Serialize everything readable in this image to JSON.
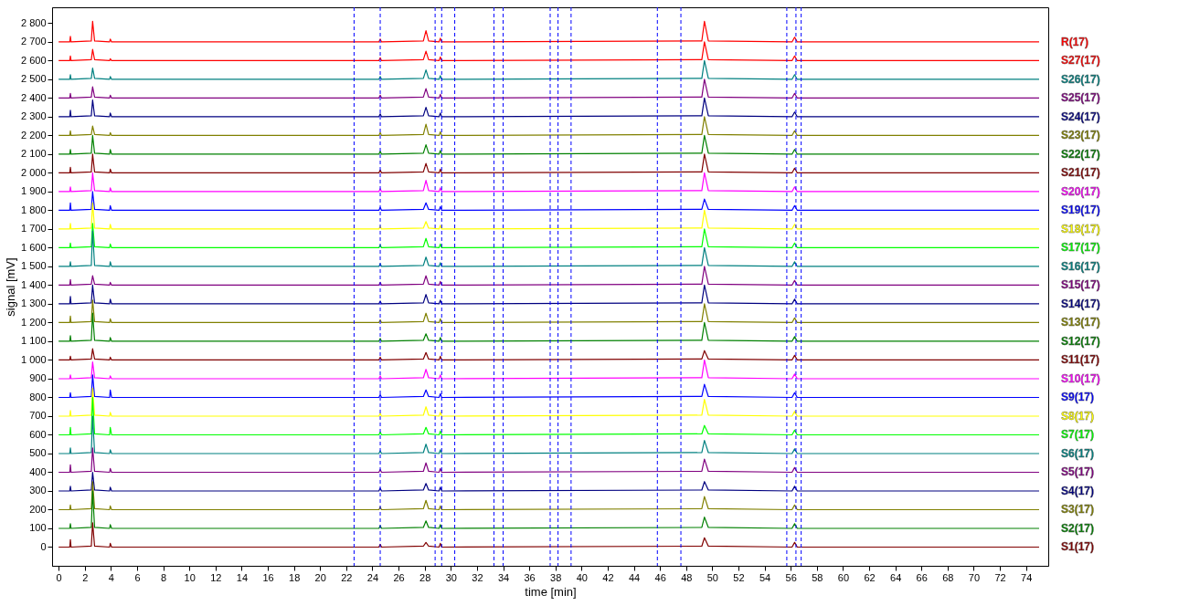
{
  "chart_data": {
    "type": "line",
    "xlabel": "time [min]",
    "ylabel": "signal [mV]",
    "line_style": "solid",
    "grid": false,
    "xlim": [
      -0.5,
      75.7
    ],
    "xticks": [
      0,
      2,
      4,
      6,
      8,
      10,
      12,
      14,
      16,
      18,
      20,
      22,
      24,
      26,
      28,
      30,
      32,
      34,
      36,
      38,
      40,
      42,
      44,
      46,
      48,
      50,
      52,
      54,
      56,
      58,
      60,
      62,
      64,
      66,
      68,
      70,
      72,
      74
    ],
    "ylim": [
      -100,
      2885
    ],
    "yticks": [
      0,
      100,
      200,
      300,
      400,
      500,
      600,
      700,
      800,
      900,
      {
        "value": 1000,
        "label": "1 000"
      },
      {
        "value": 1100,
        "label": "1 100"
      },
      {
        "value": 1200,
        "label": "1 200"
      },
      {
        "value": 1300,
        "label": "1 300"
      },
      {
        "value": 1400,
        "label": "1 400"
      },
      {
        "value": 1500,
        "label": "1 500"
      },
      {
        "value": 1600,
        "label": "1 600"
      },
      {
        "value": 1700,
        "label": "1 700"
      },
      {
        "value": 1800,
        "label": "1 800"
      },
      {
        "value": 1900,
        "label": "1 900"
      },
      {
        "value": 2000,
        "label": "2 000"
      },
      {
        "value": 2100,
        "label": "2 100"
      },
      {
        "value": 2200,
        "label": "2 200"
      },
      {
        "value": 2300,
        "label": "2 300"
      },
      {
        "value": 2400,
        "label": "2 400"
      },
      {
        "value": 2500,
        "label": "2 500"
      },
      {
        "value": 2600,
        "label": "2 600"
      },
      {
        "value": 2700,
        "label": "2 700"
      },
      {
        "value": 2800,
        "label": "2 800"
      }
    ],
    "x": [
      0,
      0.85,
      0.9,
      0.95,
      2.5,
      2.6,
      2.75,
      3.9,
      3.95,
      4.05,
      24.5,
      24.6,
      24.7,
      27.9,
      28.1,
      28.3,
      29.1,
      29.2,
      29.3,
      49.2,
      49.4,
      49.7,
      56.1,
      56.3,
      56.5,
      75
    ],
    "ref_lines": [
      {
        "axis": "x",
        "value": 22.6,
        "color": "#0000ff",
        "line_style": "dashed"
      },
      {
        "axis": "x",
        "value": 24.6,
        "color": "#0000ff",
        "line_style": "dashed"
      },
      {
        "axis": "x",
        "value": 28.8,
        "color": "#0000ff",
        "line_style": "dashed"
      },
      {
        "axis": "x",
        "value": 29.3,
        "color": "#0000ff",
        "line_style": "dashed"
      },
      {
        "axis": "x",
        "value": 30.3,
        "color": "#0000ff",
        "line_style": "dashed"
      },
      {
        "axis": "x",
        "value": 33.3,
        "color": "#0000ff",
        "line_style": "dashed"
      },
      {
        "axis": "x",
        "value": 34.0,
        "color": "#0000ff",
        "line_style": "dashed"
      },
      {
        "axis": "x",
        "value": 37.6,
        "color": "#0000ff",
        "line_style": "dashed"
      },
      {
        "axis": "x",
        "value": 38.2,
        "color": "#0000ff",
        "line_style": "dashed"
      },
      {
        "axis": "x",
        "value": 39.2,
        "color": "#0000ff",
        "line_style": "dashed"
      },
      {
        "axis": "x",
        "value": 45.8,
        "color": "#0000ff",
        "line_style": "dashed"
      },
      {
        "axis": "x",
        "value": 47.6,
        "color": "#0000ff",
        "line_style": "dashed"
      },
      {
        "axis": "x",
        "value": 55.7,
        "color": "#0000ff",
        "line_style": "dashed"
      },
      {
        "axis": "x",
        "value": 56.4,
        "color": "#0000ff",
        "line_style": "dashed"
      },
      {
        "axis": "x",
        "value": 56.8,
        "color": "#0000ff",
        "line_style": "dashed"
      }
    ],
    "series": [
      {
        "name": "R(17)",
        "color": "#ff0000",
        "values": [
          2700,
          2700,
          2730,
          2700,
          2705,
          2810,
          2705,
          2700,
          2715,
          2700,
          2700,
          2715,
          2700,
          2705,
          2760,
          2705,
          2700,
          2720,
          2700,
          2705,
          2810,
          2705,
          2700,
          2725,
          2700,
          2700
        ]
      },
      {
        "name": "S27(17)",
        "color": "#ff0000",
        "values": [
          2600,
          2600,
          2625,
          2600,
          2605,
          2660,
          2605,
          2600,
          2610,
          2600,
          2600,
          2615,
          2600,
          2605,
          2650,
          2605,
          2600,
          2620,
          2600,
          2605,
          2700,
          2605,
          2600,
          2625,
          2600,
          2600
        ]
      },
      {
        "name": "S26(17)",
        "color": "#008080",
        "values": [
          2500,
          2500,
          2525,
          2500,
          2505,
          2560,
          2505,
          2500,
          2515,
          2500,
          2500,
          2515,
          2500,
          2505,
          2550,
          2505,
          2500,
          2520,
          2500,
          2505,
          2600,
          2505,
          2500,
          2525,
          2500,
          2500
        ]
      },
      {
        "name": "S25(17)",
        "color": "#800080",
        "values": [
          2400,
          2400,
          2425,
          2400,
          2405,
          2460,
          2405,
          2400,
          2415,
          2400,
          2400,
          2415,
          2400,
          2405,
          2450,
          2405,
          2400,
          2420,
          2400,
          2405,
          2500,
          2405,
          2400,
          2425,
          2400,
          2400
        ]
      },
      {
        "name": "S24(17)",
        "color": "#000080",
        "values": [
          2300,
          2300,
          2335,
          2300,
          2305,
          2390,
          2305,
          2300,
          2320,
          2300,
          2300,
          2315,
          2300,
          2305,
          2350,
          2305,
          2300,
          2320,
          2300,
          2305,
          2400,
          2305,
          2300,
          2325,
          2300,
          2300
        ]
      },
      {
        "name": "S23(17)",
        "color": "#808000",
        "values": [
          2200,
          2200,
          2225,
          2200,
          2205,
          2250,
          2205,
          2200,
          2215,
          2200,
          2200,
          2215,
          2200,
          2205,
          2260,
          2205,
          2200,
          2220,
          2200,
          2205,
          2300,
          2205,
          2200,
          2225,
          2200,
          2200
        ]
      },
      {
        "name": "S22(17)",
        "color": "#008000",
        "values": [
          2100,
          2100,
          2125,
          2100,
          2105,
          2200,
          2105,
          2100,
          2125,
          2100,
          2100,
          2115,
          2100,
          2105,
          2150,
          2105,
          2100,
          2120,
          2100,
          2105,
          2200,
          2105,
          2100,
          2125,
          2100,
          2100
        ]
      },
      {
        "name": "S21(17)",
        "color": "#800000",
        "values": [
          2000,
          2000,
          2030,
          2000,
          2005,
          2100,
          2005,
          2000,
          2020,
          2000,
          2000,
          2015,
          2000,
          2005,
          2050,
          2005,
          2000,
          2020,
          2000,
          2005,
          2100,
          2005,
          2000,
          2025,
          2000,
          2000
        ]
      },
      {
        "name": "S20(17)",
        "color": "#ff00ff",
        "values": [
          1900,
          1900,
          1925,
          1900,
          1905,
          2000,
          1905,
          1900,
          1920,
          1900,
          1900,
          1915,
          1900,
          1905,
          1960,
          1905,
          1900,
          1920,
          1900,
          1905,
          2000,
          1905,
          1900,
          1925,
          1900,
          1900
        ]
      },
      {
        "name": "S19(17)",
        "color": "#0000ff",
        "values": [
          1800,
          1800,
          1840,
          1800,
          1805,
          1900,
          1805,
          1800,
          1825,
          1800,
          1800,
          1815,
          1800,
          1805,
          1840,
          1805,
          1800,
          1820,
          1800,
          1805,
          1860,
          1805,
          1800,
          1825,
          1800,
          1800
        ]
      },
      {
        "name": "S18(17)",
        "color": "#ffff00",
        "values": [
          1700,
          1700,
          1730,
          1700,
          1705,
          1840,
          1705,
          1700,
          1725,
          1700,
          1700,
          1715,
          1700,
          1705,
          1740,
          1705,
          1700,
          1720,
          1700,
          1705,
          1800,
          1705,
          1700,
          1725,
          1700,
          1700
        ]
      },
      {
        "name": "S17(17)",
        "color": "#00ff00",
        "values": [
          1600,
          1600,
          1625,
          1600,
          1605,
          1730,
          1605,
          1600,
          1620,
          1600,
          1600,
          1615,
          1600,
          1605,
          1650,
          1605,
          1600,
          1620,
          1600,
          1605,
          1700,
          1605,
          1600,
          1625,
          1600,
          1600
        ]
      },
      {
        "name": "S16(17)",
        "color": "#008080",
        "values": [
          1500,
          1500,
          1525,
          1500,
          1505,
          1690,
          1505,
          1500,
          1525,
          1500,
          1500,
          1515,
          1500,
          1505,
          1550,
          1505,
          1500,
          1520,
          1500,
          1505,
          1600,
          1505,
          1500,
          1525,
          1500,
          1500
        ]
      },
      {
        "name": "S15(17)",
        "color": "#800080",
        "values": [
          1400,
          1400,
          1430,
          1400,
          1405,
          1450,
          1405,
          1400,
          1415,
          1400,
          1400,
          1415,
          1400,
          1405,
          1450,
          1405,
          1400,
          1420,
          1400,
          1405,
          1500,
          1405,
          1400,
          1425,
          1400,
          1400
        ]
      },
      {
        "name": "S14(17)",
        "color": "#000080",
        "values": [
          1300,
          1300,
          1340,
          1300,
          1305,
          1400,
          1305,
          1300,
          1325,
          1300,
          1300,
          1315,
          1300,
          1305,
          1350,
          1305,
          1300,
          1320,
          1300,
          1305,
          1400,
          1305,
          1300,
          1325,
          1300,
          1300
        ]
      },
      {
        "name": "S13(17)",
        "color": "#808000",
        "values": [
          1200,
          1200,
          1235,
          1200,
          1205,
          1320,
          1205,
          1200,
          1220,
          1200,
          1200,
          1215,
          1200,
          1205,
          1250,
          1205,
          1200,
          1220,
          1200,
          1205,
          1300,
          1205,
          1200,
          1225,
          1200,
          1200
        ]
      },
      {
        "name": "S12(17)",
        "color": "#008000",
        "values": [
          1100,
          1100,
          1130,
          1100,
          1105,
          1250,
          1105,
          1100,
          1120,
          1100,
          1100,
          1115,
          1100,
          1105,
          1140,
          1105,
          1100,
          1120,
          1100,
          1105,
          1200,
          1105,
          1100,
          1125,
          1100,
          1100
        ]
      },
      {
        "name": "S11(17)",
        "color": "#800000",
        "values": [
          1000,
          1000,
          1020,
          1000,
          1005,
          1060,
          1005,
          1000,
          1015,
          1000,
          1000,
          1015,
          1000,
          1005,
          1040,
          1005,
          1000,
          1020,
          1000,
          1005,
          1050,
          1005,
          1000,
          1025,
          1000,
          1000
        ]
      },
      {
        "name": "S10(17)",
        "color": "#ff00ff",
        "values": [
          900,
          900,
          920,
          900,
          905,
          990,
          905,
          900,
          915,
          900,
          900,
          915,
          900,
          905,
          950,
          905,
          900,
          920,
          900,
          905,
          1000,
          905,
          900,
          925,
          900,
          900
        ]
      },
      {
        "name": "S9(17)",
        "color": "#0000ff",
        "values": [
          800,
          800,
          825,
          800,
          805,
          920,
          805,
          800,
          840,
          800,
          800,
          815,
          800,
          805,
          840,
          805,
          800,
          820,
          800,
          805,
          870,
          805,
          800,
          825,
          800,
          800
        ]
      },
      {
        "name": "S8(17)",
        "color": "#ffff00",
        "values": [
          700,
          700,
          730,
          700,
          705,
          850,
          705,
          700,
          720,
          700,
          700,
          715,
          700,
          705,
          750,
          705,
          700,
          720,
          700,
          705,
          790,
          705,
          700,
          725,
          700,
          700
        ]
      },
      {
        "name": "S7(17)",
        "color": "#00ff00",
        "values": [
          600,
          600,
          640,
          600,
          605,
          800,
          605,
          600,
          640,
          600,
          600,
          615,
          600,
          605,
          640,
          605,
          600,
          620,
          600,
          605,
          650,
          605,
          600,
          625,
          600,
          600
        ]
      },
      {
        "name": "S6(17)",
        "color": "#008080",
        "values": [
          500,
          500,
          530,
          500,
          505,
          700,
          505,
          500,
          520,
          500,
          500,
          515,
          500,
          505,
          550,
          505,
          500,
          520,
          500,
          505,
          570,
          505,
          500,
          525,
          500,
          500
        ]
      },
      {
        "name": "S5(17)",
        "color": "#800080",
        "values": [
          400,
          400,
          440,
          400,
          405,
          530,
          405,
          400,
          420,
          400,
          400,
          415,
          400,
          405,
          450,
          405,
          400,
          420,
          400,
          405,
          470,
          405,
          400,
          425,
          400,
          400
        ]
      },
      {
        "name": "S4(17)",
        "color": "#000080",
        "values": [
          300,
          300,
          325,
          300,
          305,
          400,
          305,
          300,
          320,
          300,
          300,
          315,
          300,
          305,
          340,
          305,
          300,
          320,
          300,
          305,
          350,
          305,
          300,
          325,
          300,
          300
        ]
      },
      {
        "name": "S3(17)",
        "color": "#808000",
        "values": [
          200,
          200,
          225,
          200,
          205,
          350,
          205,
          200,
          220,
          200,
          200,
          215,
          200,
          205,
          250,
          205,
          200,
          220,
          200,
          205,
          270,
          205,
          200,
          225,
          200,
          200
        ]
      },
      {
        "name": "S2(17)",
        "color": "#008000",
        "values": [
          100,
          100,
          125,
          100,
          105,
          300,
          105,
          100,
          120,
          100,
          100,
          115,
          100,
          105,
          140,
          105,
          100,
          120,
          100,
          105,
          160,
          105,
          100,
          125,
          100,
          100
        ]
      },
      {
        "name": "S1(17)",
        "color": "#800000",
        "values": [
          0,
          0,
          40,
          0,
          5,
          130,
          5,
          0,
          20,
          0,
          0,
          15,
          0,
          5,
          25,
          5,
          0,
          20,
          0,
          5,
          50,
          5,
          0,
          25,
          0,
          0
        ]
      }
    ]
  }
}
